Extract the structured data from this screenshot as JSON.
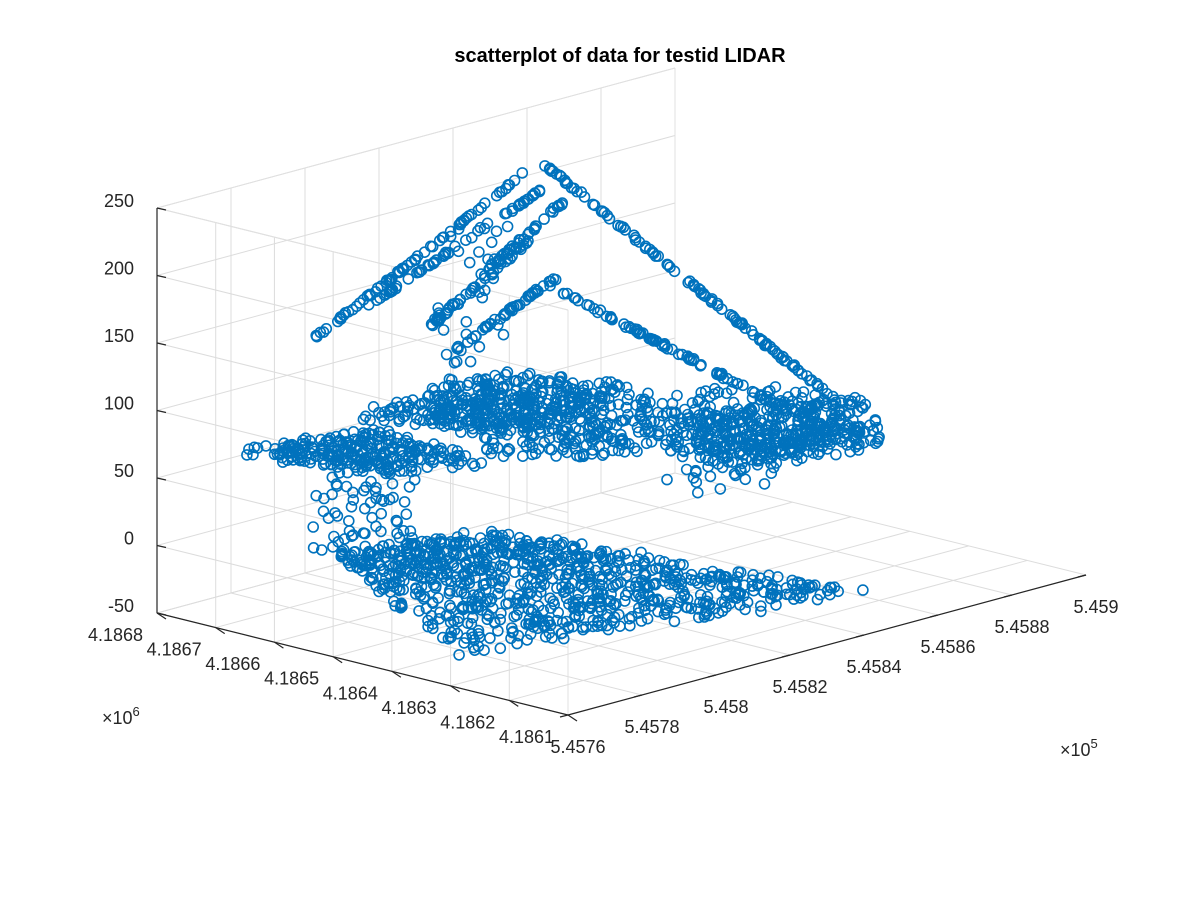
{
  "chart_data": {
    "type": "scatter",
    "title": "scatterplot of data for testid LIDAR",
    "xlabel": "",
    "ylabel": "",
    "zlabel": "",
    "xlim": [
      545760,
      545900
    ],
    "ylim": [
      4186100,
      4186800
    ],
    "zlim": [
      -50,
      250
    ],
    "x_ticks": [
      545760,
      545780,
      545800,
      545820,
      545840,
      545860,
      545880,
      545900
    ],
    "x_tick_labels": [
      "5.4576",
      "5.4578",
      "5.458",
      "5.4582",
      "5.4584",
      "5.4586",
      "5.4588",
      "5.459"
    ],
    "x_exponent_base": "×10",
    "x_exponent": "5",
    "y_ticks": [
      4186100,
      4186200,
      4186300,
      4186400,
      4186500,
      4186600,
      4186700,
      4186800
    ],
    "y_tick_labels": [
      "4.1861",
      "4.1862",
      "4.1863",
      "4.1864",
      "4.1865",
      "4.1866",
      "4.1867",
      "4.1868"
    ],
    "y_exponent_base": "×10",
    "y_exponent": "6",
    "z_ticks": [
      -50,
      0,
      50,
      100,
      150,
      200,
      250
    ],
    "z_tick_labels": [
      "-50",
      "0",
      "50",
      "100",
      "150",
      "200",
      "250"
    ],
    "grid": true,
    "marker": "circle",
    "color": "#0072BD",
    "series": [
      {
        "clusters": [
          {
            "shape": "sheet",
            "corners": [
              [
                545764,
                4186310,
                -30
              ],
              [
                545850,
                4186150,
                -30
              ],
              [
                545830,
                4186690,
                -30
              ],
              [
                545800,
                4186750,
                -30
              ]
            ],
            "count": 900,
            "spread": 2.5
          },
          {
            "shape": "sheet",
            "corners": [
              [
                545784,
                4186590,
                60
              ],
              [
                545818,
                4186600,
                40
              ],
              [
                545810,
                4186740,
                55
              ],
              [
                545770,
                4186740,
                70
              ]
            ],
            "count": 260,
            "spread": 3
          },
          {
            "shape": "sheet",
            "corners": [
              [
                545818,
                4186600,
                45
              ],
              [
                545896,
                4186460,
                5
              ],
              [
                545896,
                4186510,
                45
              ],
              [
                545820,
                4186660,
                80
              ]
            ],
            "count": 500,
            "spread": 3
          },
          {
            "shape": "sheet",
            "corners": [
              [
                545788,
                4186650,
                90
              ],
              [
                545822,
                4186590,
                60
              ],
              [
                545850,
                4186540,
                80
              ],
              [
                545820,
                4186610,
                105
              ]
            ],
            "count": 300,
            "spread": 3
          },
          {
            "shape": "sheet",
            "corners": [
              [
                545860,
                4186480,
                20
              ],
              [
                545898,
                4186420,
                15
              ],
              [
                545898,
                4186470,
                45
              ],
              [
                545862,
                4186530,
                50
              ]
            ],
            "count": 250,
            "spread": 3
          },
          {
            "shape": "line",
            "from": [
              545790,
              4186720,
              140
            ],
            "to": [
              545835,
              4186640,
              240
            ],
            "count": 70,
            "spread": 0.8
          },
          {
            "shape": "line",
            "from": [
              545800,
              4186690,
              160
            ],
            "to": [
              545837,
              4186630,
              225
            ],
            "count": 60,
            "spread": 0.8
          },
          {
            "shape": "line",
            "from": [
              545838,
              4186630,
              242
            ],
            "to": [
              545893,
              4186510,
              50
            ],
            "count": 110,
            "spread": 0.8
          },
          {
            "shape": "line",
            "from": [
              545835,
              4186620,
              160
            ],
            "to": [
              545893,
              4186500,
              20
            ],
            "count": 90,
            "spread": 0.9
          },
          {
            "shape": "line",
            "from": [
              545815,
              4186655,
              115
            ],
            "to": [
              545838,
              4186615,
              160
            ],
            "count": 45,
            "spread": 1.2
          },
          {
            "shape": "line",
            "from": [
              545812,
              4186660,
              140
            ],
            "to": [
              545835,
              4186625,
              195
            ],
            "count": 45,
            "spread": 1.2
          },
          {
            "shape": "line",
            "from": [
              545822,
              4186642,
              170
            ],
            "to": [
              545840,
              4186612,
              215
            ],
            "count": 40,
            "spread": 1.2
          },
          {
            "shape": "scatter",
            "center": [
              545820,
              4186640,
              130
            ],
            "range": [
              8,
              25,
              80
            ],
            "count": 50
          },
          {
            "shape": "scatter",
            "center": [
              545790,
              4186640,
              30
            ],
            "range": [
              10,
              40,
              35
            ],
            "count": 70
          },
          {
            "shape": "scatter",
            "center": [
              545868,
              4186500,
              20
            ],
            "range": [
              14,
              40,
              20
            ],
            "count": 60
          }
        ]
      }
    ]
  }
}
